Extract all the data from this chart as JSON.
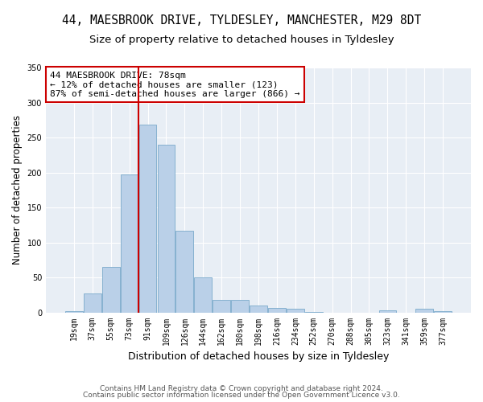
{
  "title": "44, MAESBROOK DRIVE, TYLDESLEY, MANCHESTER, M29 8DT",
  "subtitle": "Size of property relative to detached houses in Tyldesley",
  "xlabel": "Distribution of detached houses by size in Tyldesley",
  "ylabel": "Number of detached properties",
  "bar_labels": [
    "19sqm",
    "37sqm",
    "55sqm",
    "73sqm",
    "91sqm",
    "109sqm",
    "126sqm",
    "144sqm",
    "162sqm",
    "180sqm",
    "198sqm",
    "216sqm",
    "234sqm",
    "252sqm",
    "270sqm",
    "288sqm",
    "305sqm",
    "323sqm",
    "341sqm",
    "359sqm",
    "377sqm"
  ],
  "bar_values": [
    2,
    27,
    65,
    197,
    268,
    240,
    117,
    50,
    18,
    18,
    10,
    6,
    5,
    1,
    0,
    0,
    0,
    3,
    0,
    5,
    2
  ],
  "bar_color": "#bad0e8",
  "bar_edgecolor": "#7aaacb",
  "fig_bg_color": "#ffffff",
  "ax_bg_color": "#e8eef5",
  "grid_color": "#ffffff",
  "vline_color": "#cc0000",
  "vline_x_index": 3,
  "annotation_line1": "44 MAESBROOK DRIVE: 78sqm",
  "annotation_line2": "← 12% of detached houses are smaller (123)",
  "annotation_line3": "87% of semi-detached houses are larger (866) →",
  "ylim": [
    0,
    350
  ],
  "yticks": [
    0,
    50,
    100,
    150,
    200,
    250,
    300,
    350
  ],
  "title_fontsize": 10.5,
  "subtitle_fontsize": 9.5,
  "xlabel_fontsize": 9,
  "ylabel_fontsize": 8.5,
  "tick_fontsize": 7,
  "annotation_fontsize": 8,
  "footer_fontsize": 6.5,
  "footer_line1": "Contains HM Land Registry data © Crown copyright and database right 2024.",
  "footer_line2": "Contains public sector information licensed under the Open Government Licence v3.0."
}
